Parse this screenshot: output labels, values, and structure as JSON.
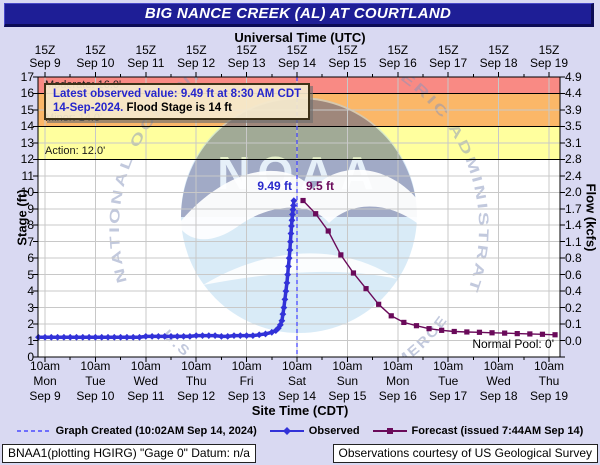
{
  "window": {
    "title": "BIG NANCE CREEK (AL) AT COURTLAND"
  },
  "axes": {
    "top": {
      "title": "Universal Time (UTC)",
      "tick_time": "15Z",
      "days": [
        "Sep 9",
        "Sep 10",
        "Sep 11",
        "Sep 12",
        "Sep 13",
        "Sep 14",
        "Sep 15",
        "Sep 16",
        "Sep 17",
        "Sep 18",
        "Sep 19"
      ]
    },
    "bottom": {
      "title": "Site Time (CDT)",
      "tick_time": "10am",
      "weekdays": [
        "Mon",
        "Tue",
        "Wed",
        "Thu",
        "Fri",
        "Sat",
        "Sun",
        "Mon",
        "Tue",
        "Wed",
        "Thu"
      ],
      "dates": [
        "Sep 9",
        "Sep 10",
        "Sep 11",
        "Sep 12",
        "Sep 13",
        "Sep 14",
        "Sep 15",
        "Sep 16",
        "Sep 17",
        "Sep 18",
        "Sep 19"
      ]
    },
    "left": {
      "title": "Stage (ft)",
      "ticks": [
        "17",
        "16",
        "15",
        "14",
        "13",
        "12",
        "11",
        "10",
        "9",
        "8",
        "7",
        "6",
        "5",
        "4",
        "3",
        "2",
        "1",
        "0"
      ]
    },
    "right": {
      "title": "Flow (kcfs)",
      "ticks": [
        "4.9",
        "4.4",
        "3.9",
        "3.5",
        "3.1",
        "2.8",
        "2.4",
        "2.0",
        "1.7",
        "1.4",
        "1.1",
        "0.8",
        "0.6",
        "0.4",
        "0.2",
        "0.1",
        "0.0"
      ]
    }
  },
  "annotation": {
    "line1": "Latest observed value: 9.49 ft at 8:30 AM CDT",
    "line2_date": "14-Sep-2024.",
    "line2_rest": "Flood Stage is 14 ft"
  },
  "flood_zones": [
    {
      "label": "Moderate: 16.0'",
      "level": 16.0,
      "color": "#f98a84"
    },
    {
      "label": "Minor: 14.0'",
      "level": 14.0,
      "color": "#fbb768"
    },
    {
      "label": "Action: 12.0'",
      "level": 12.0,
      "color": "#ffff9e"
    }
  ],
  "labels": {
    "observed_peak": "9.49 ft",
    "forecast_peak": "9.5 ft",
    "normal_pool": "Normal Pool: 0'"
  },
  "legend": {
    "items": [
      {
        "sample": "dashed",
        "color": "#4a4aff",
        "label": "Graph Created (10:02AM Sep 14, 2024)"
      },
      {
        "sample": "diamond",
        "color": "#3232d8",
        "label": "Observed"
      },
      {
        "sample": "square",
        "color": "#6a0a5a",
        "label": "Forecast (issued 7:44AM Sep 14)"
      }
    ]
  },
  "footer": {
    "left": "BNAA1(plotting HGIRG) \"Gage 0\" Datum: n/a",
    "right": "Observations courtesy of US Geological Survey"
  },
  "watermark": {
    "ring_top": "NATIONAL OCEANIC AND ATMOSPHERIC ADMINISTRATION",
    "ring_bottom": "U.S. DEPARTMENT OF COMMERCE",
    "center": "NOAA"
  },
  "chart_data": {
    "type": "line",
    "title": "BIG NANCE CREEK (AL) AT COURTLAND",
    "x_axis": {
      "label_top": "Universal Time (UTC)",
      "label_bottom": "Site Time (CDT)",
      "unit": "days since Sep 9 10am CDT",
      "range": [
        -0.14,
        10.21
      ],
      "day_ticks": [
        0,
        1,
        2,
        3,
        4,
        5,
        6,
        7,
        8,
        9,
        10
      ],
      "grid": true
    },
    "y_axis": {
      "label": "Stage (ft)",
      "range": [
        0,
        17
      ],
      "tick_step": 1,
      "grid": true
    },
    "y2_axis": {
      "label": "Flow (kcfs)",
      "tick_values_top_to_bottom": [
        4.9,
        4.4,
        3.9,
        3.5,
        3.1,
        2.8,
        2.4,
        2.0,
        1.7,
        1.4,
        1.1,
        0.8,
        0.6,
        0.4,
        0.2,
        0.1,
        0.0
      ]
    },
    "thresholds": {
      "action": 12.0,
      "minor": 14.0,
      "moderate": 16.0
    },
    "current_time_day": 5.0,
    "normal_pool_ft": 0,
    "observed_peak": {
      "day": 4.9375,
      "stage": 9.49
    },
    "forecast_peak": {
      "day": 5.12,
      "stage": 9.5
    },
    "series": [
      {
        "name": "Observed",
        "color": "#3232d8",
        "marker": "diamond",
        "points": [
          [
            -0.13,
            1.2
          ],
          [
            0,
            1.2
          ],
          [
            0.125,
            1.2
          ],
          [
            0.25,
            1.2
          ],
          [
            0.375,
            1.2
          ],
          [
            0.5,
            1.2
          ],
          [
            0.625,
            1.2
          ],
          [
            0.75,
            1.2
          ],
          [
            0.875,
            1.2
          ],
          [
            1,
            1.2
          ],
          [
            1.125,
            1.2
          ],
          [
            1.25,
            1.2
          ],
          [
            1.375,
            1.2
          ],
          [
            1.5,
            1.2
          ],
          [
            1.625,
            1.2
          ],
          [
            1.75,
            1.2
          ],
          [
            1.875,
            1.2
          ],
          [
            2,
            1.25
          ],
          [
            2.125,
            1.25
          ],
          [
            2.25,
            1.25
          ],
          [
            2.375,
            1.25
          ],
          [
            2.5,
            1.25
          ],
          [
            2.625,
            1.25
          ],
          [
            2.75,
            1.25
          ],
          [
            2.875,
            1.25
          ],
          [
            3,
            1.3
          ],
          [
            3.125,
            1.3
          ],
          [
            3.25,
            1.3
          ],
          [
            3.375,
            1.3
          ],
          [
            3.5,
            1.25
          ],
          [
            3.625,
            1.25
          ],
          [
            3.75,
            1.3
          ],
          [
            3.875,
            1.3
          ],
          [
            4,
            1.3
          ],
          [
            4.125,
            1.3
          ],
          [
            4.25,
            1.35
          ],
          [
            4.375,
            1.4
          ],
          [
            4.5,
            1.5
          ],
          [
            4.58,
            1.6
          ],
          [
            4.63,
            1.75
          ],
          [
            4.67,
            1.95
          ],
          [
            4.7,
            2.2
          ],
          [
            4.72,
            2.6
          ],
          [
            4.74,
            3
          ],
          [
            4.76,
            3.5
          ],
          [
            4.78,
            4
          ],
          [
            4.8,
            4.5
          ],
          [
            4.815,
            5
          ],
          [
            4.83,
            5.5
          ],
          [
            4.845,
            6
          ],
          [
            4.86,
            6.5
          ],
          [
            4.87,
            7
          ],
          [
            4.88,
            7.5
          ],
          [
            4.89,
            7.95
          ],
          [
            4.9,
            8.3
          ],
          [
            4.91,
            8.65
          ],
          [
            4.92,
            8.95
          ],
          [
            4.93,
            9.2
          ],
          [
            4.9375,
            9.49
          ]
        ]
      },
      {
        "name": "Forecast",
        "color": "#6a0a5a",
        "marker": "square",
        "points": [
          [
            5.12,
            9.5
          ],
          [
            5.37,
            8.7
          ],
          [
            5.62,
            7.65
          ],
          [
            5.87,
            6.2
          ],
          [
            6.12,
            5.1
          ],
          [
            6.37,
            4.15
          ],
          [
            6.62,
            3.2
          ],
          [
            6.87,
            2.5
          ],
          [
            7.12,
            2.1
          ],
          [
            7.37,
            1.9
          ],
          [
            7.62,
            1.72
          ],
          [
            7.87,
            1.62
          ],
          [
            8.12,
            1.55
          ],
          [
            8.37,
            1.52
          ],
          [
            8.62,
            1.5
          ],
          [
            8.87,
            1.47
          ],
          [
            9.12,
            1.45
          ],
          [
            9.37,
            1.42
          ],
          [
            9.62,
            1.4
          ],
          [
            9.87,
            1.38
          ],
          [
            10.12,
            1.35
          ]
        ]
      }
    ]
  }
}
